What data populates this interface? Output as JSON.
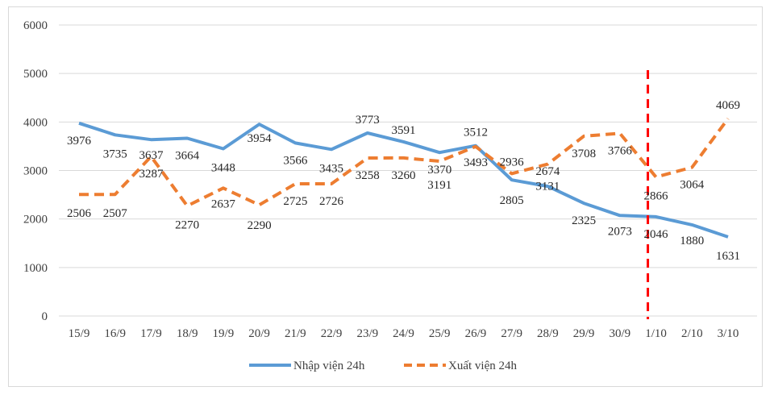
{
  "chart_data": {
    "type": "line",
    "title": "",
    "xlabel": "",
    "ylabel": "",
    "ylim": [
      0,
      6000
    ],
    "yticks": [
      0,
      1000,
      2000,
      3000,
      4000,
      5000,
      6000
    ],
    "grid": true,
    "legend_position": "bottom",
    "categories": [
      "15/9",
      "16/9",
      "17/9",
      "18/9",
      "19/9",
      "20/9",
      "21/9",
      "22/9",
      "23/9",
      "24/9",
      "25/9",
      "26/9",
      "27/9",
      "28/9",
      "29/9",
      "30/9",
      "1/10",
      "2/10",
      "3/10"
    ],
    "series": [
      {
        "name": "Nhập viện 24h",
        "style": "solid",
        "color": "#5b9bd5",
        "values": [
          3976,
          3735,
          3637,
          3664,
          3448,
          3954,
          3566,
          3435,
          3773,
          3591,
          3370,
          3512,
          2805,
          2674,
          2325,
          2073,
          2046,
          1880,
          1631
        ]
      },
      {
        "name": "Xuất viện 24h",
        "style": "dashed",
        "color": "#ed7d31",
        "values": [
          2506,
          2507,
          3287,
          2270,
          2637,
          2290,
          2725,
          2726,
          3258,
          3260,
          3191,
          3493,
          2936,
          3131,
          3708,
          3766,
          2866,
          3064,
          4069
        ]
      }
    ],
    "annotations": [
      {
        "type": "vertical-dashed-line",
        "at_category": "1/10",
        "color": "#ff0000"
      }
    ]
  }
}
